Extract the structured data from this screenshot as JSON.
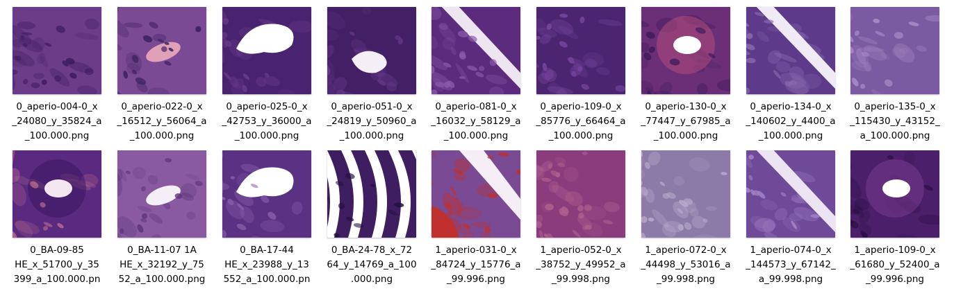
{
  "files": [
    {
      "lines": [
        "0_aperio-004-0_x",
        "_24080_y_35824_a",
        "_100.000.png"
      ],
      "palette": [
        "#6b3c88",
        "#8b4fa0",
        "#3e1c60",
        "#b58fc8"
      ],
      "style": "fibrous"
    },
    {
      "lines": [
        "0_aperio-022-0_x",
        "_16512_y_56064_a",
        "_100.000.png"
      ],
      "palette": [
        "#7a4a94",
        "#9d6ab5",
        "#3b1f5e",
        "#e0a0b8"
      ],
      "style": "duct-red"
    },
    {
      "lines": [
        "0_aperio-025-0_x",
        "_42753_y_36000_a",
        "_100.000.png"
      ],
      "palette": [
        "#4a2370",
        "#2e1550",
        "#6e3d8d",
        "#ffffff"
      ],
      "style": "lumen-wide"
    },
    {
      "lines": [
        "0_aperio-051-0_x",
        "_24819_y_50960_a",
        "_100.000.png"
      ],
      "palette": [
        "#432066",
        "#2a1248",
        "#6a3a8c",
        "#f4eef7"
      ],
      "style": "lumen-small"
    },
    {
      "lines": [
        "0_aperio-081-0_x",
        "_16032_y_58129_a",
        "_100.000.png"
      ],
      "palette": [
        "#5b2c7e",
        "#3a1a5c",
        "#8c5aa8",
        "#f6f0f8"
      ],
      "style": "diagonal-gap"
    },
    {
      "lines": [
        "0_aperio-109-0_x",
        "_85776_y_66464_a",
        "_100.000.png"
      ],
      "palette": [
        "#4b2570",
        "#2c1450",
        "#7846a0",
        "#efe8f2"
      ],
      "style": "dense"
    },
    {
      "lines": [
        "0_aperio-130-0_x",
        "_77447_y_67985_a",
        "_100.000.png"
      ],
      "palette": [
        "#6b2f78",
        "#b04a7a",
        "#3d1a5a",
        "#ffffff"
      ],
      "style": "ring"
    },
    {
      "lines": [
        "0_aperio-134-0_x",
        "_140602_y_4400_a",
        "_100.000.png"
      ],
      "palette": [
        "#5e3b8a",
        "#3c2366",
        "#8a6cb0",
        "#f7f3fa"
      ],
      "style": "diagonal-gap"
    },
    {
      "lines": [
        "0_aperio-135-0_x",
        "_115430_y_43152_",
        "a_100.000.png"
      ],
      "palette": [
        "#7a5aa0",
        "#4a2e78",
        "#a98cc8",
        "#d8c8e6"
      ],
      "style": "fibrous"
    },
    {
      "lines": [
        "0_BA-09-85",
        "HE_x_51700_y_35",
        "399_a_100.000.pn"
      ],
      "palette": [
        "#5a2a80",
        "#3a1660",
        "#c07090",
        "#f3e6ef"
      ],
      "style": "ring"
    },
    {
      "lines": [
        "0_BA-11-07 1A",
        "HE_x_32192_y_75",
        "52_a_100.000.png"
      ],
      "palette": [
        "#8a5aa0",
        "#b07ac0",
        "#5a3478",
        "#f4eef6"
      ],
      "style": "duct-red"
    },
    {
      "lines": [
        "0_BA-17-44",
        "HE_x_23988_y_13",
        "552_a_100.000.pn"
      ],
      "palette": [
        "#5b3184",
        "#3b1c62",
        "#8d62ad",
        "#ffffff"
      ],
      "style": "lumen-wide"
    },
    {
      "lines": [
        "0_BA-24-78_x_72",
        "64_y_14769_a_100",
        ".000.png"
      ],
      "palette": [
        "#3e1d60",
        "#6b3d8f",
        "#241040",
        "#ffffff"
      ],
      "style": "stripes"
    },
    {
      "lines": [
        "1_aperio-031-0_x",
        "_84724_y_15776_a",
        "_99.996.png"
      ],
      "palette": [
        "#7a4a94",
        "#b0508a",
        "#c0302e",
        "#f5eef6"
      ],
      "style": "blood"
    },
    {
      "lines": [
        "1_aperio-052-0_x",
        "_38752_y_49952_a",
        "_99.998.png"
      ],
      "palette": [
        "#8a3c7c",
        "#5a2466",
        "#b0608e",
        "#e8c8dc"
      ],
      "style": "dense"
    },
    {
      "lines": [
        "1_aperio-072-0_x",
        "_44498_y_53016_a",
        "_99.998.png"
      ],
      "palette": [
        "#8c7aa8",
        "#4a3070",
        "#b8aacb",
        "#eae4f0"
      ],
      "style": "fibrous"
    },
    {
      "lines": [
        "1_aperio-074-0_x",
        "_144573_y_67142_",
        "a_99.998.png"
      ],
      "palette": [
        "#6e4a98",
        "#4a2c78",
        "#a584c6",
        "#f2ecf7"
      ],
      "style": "diagonal-gap"
    },
    {
      "lines": [
        "1_aperio-109-0_x",
        "_61680_y_52400_a",
        "_99.996.png"
      ],
      "palette": [
        "#4b1f6a",
        "#7a3a8e",
        "#2c0f46",
        "#ffffff"
      ],
      "style": "ring"
    }
  ]
}
